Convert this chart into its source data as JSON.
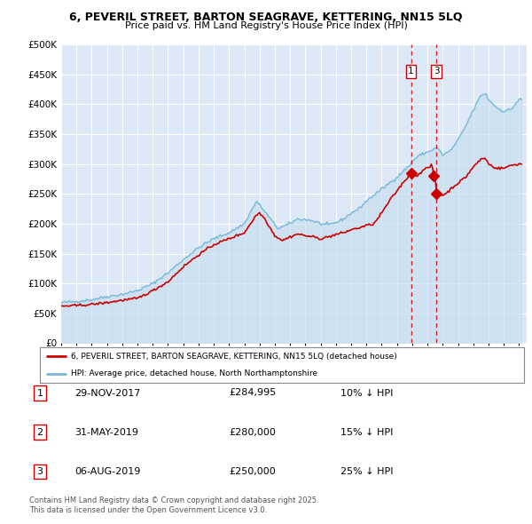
{
  "title": "6, PEVERIL STREET, BARTON SEAGRAVE, KETTERING, NN15 5LQ",
  "subtitle": "Price paid vs. HM Land Registry's House Price Index (HPI)",
  "legend_line1": "6, PEVERIL STREET, BARTON SEAGRAVE, KETTERING, NN15 5LQ (detached house)",
  "legend_line2": "HPI: Average price, detached house, North Northamptonshire",
  "footer_line1": "Contains HM Land Registry data © Crown copyright and database right 2025.",
  "footer_line2": "This data is licensed under the Open Government Licence v3.0.",
  "table_rows": [
    {
      "num": "1",
      "date": "29-NOV-2017",
      "price": "£284,995",
      "change": "10% ↓ HPI"
    },
    {
      "num": "2",
      "date": "31-MAY-2019",
      "price": "£280,000",
      "change": "15% ↓ HPI"
    },
    {
      "num": "3",
      "date": "06-AUG-2019",
      "price": "£250,000",
      "change": "25% ↓ HPI"
    }
  ],
  "hpi_color": "#7ab8d9",
  "hpi_fill_color": "#c8dff0",
  "price_color": "#cc0000",
  "background_plot": "#dce8f5",
  "background_fig": "#ffffff",
  "grid_color": "#ffffff",
  "ylim": [
    0,
    500000
  ],
  "yticks": [
    0,
    50000,
    100000,
    150000,
    200000,
    250000,
    300000,
    350000,
    400000,
    450000,
    500000
  ],
  "xlim_start": 1995.0,
  "xlim_end": 2025.5,
  "vline1": 2017.92,
  "vline2": 2019.59,
  "sale1_x": 2017.92,
  "sale1_y": 284995,
  "sale2_x": 2019.42,
  "sale2_y": 280000,
  "sale3_x": 2019.59,
  "sale3_y": 250000
}
